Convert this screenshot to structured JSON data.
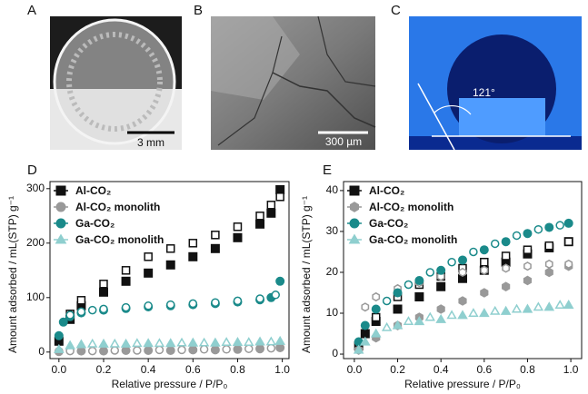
{
  "panels": {
    "a": {
      "label": "A",
      "scale_bar": "3 mm"
    },
    "b": {
      "label": "B",
      "scale_bar": "300 µm"
    },
    "c": {
      "label": "C",
      "angle": "121°"
    }
  },
  "chart_data": [
    {
      "type": "scatter",
      "panel_label": "D",
      "x_label": "Relative pressure / P/P₀",
      "y_label": "Amount adsorbed / mL(STP) g⁻¹",
      "xlim": [
        -0.04,
        1.03
      ],
      "ylim": [
        -12,
        313
      ],
      "xticks": [
        {
          "value": 0,
          "label": "0.0"
        },
        {
          "value": 0.2,
          "label": "0.2"
        },
        {
          "value": 0.4,
          "label": "0.4"
        },
        {
          "value": 0.6,
          "label": "0.6"
        },
        {
          "value": 0.8,
          "label": "0.8"
        },
        {
          "value": 1,
          "label": "1.0"
        }
      ],
      "yticks": [
        0,
        100,
        200,
        300
      ],
      "legend": "upper left",
      "series": [
        {
          "name": "Al-CO₂",
          "color": "#111111",
          "marker": "square",
          "x": [
            0.0,
            0.05,
            0.1,
            0.2,
            0.3,
            0.4,
            0.5,
            0.6,
            0.7,
            0.8,
            0.9,
            0.95,
            0.99
          ],
          "values": [
            20,
            60,
            85,
            110,
            130,
            145,
            160,
            175,
            190,
            210,
            235,
            255,
            298
          ],
          "desorption": {
            "x": [
              0.99,
              0.95,
              0.9,
              0.8,
              0.7,
              0.6,
              0.5,
              0.4,
              0.3,
              0.2,
              0.1,
              0.05
            ],
            "values": [
              285,
              270,
              250,
              230,
              215,
              200,
              190,
              175,
              150,
              125,
              95,
              70
            ]
          }
        },
        {
          "name": "Al-CO₂ monolith",
          "color": "#999999",
          "marker": "circle",
          "x": [
            0.0,
            0.1,
            0.2,
            0.3,
            0.4,
            0.5,
            0.6,
            0.7,
            0.8,
            0.9,
            0.99
          ],
          "values": [
            1,
            2,
            2,
            3,
            3,
            3,
            4,
            4,
            5,
            6,
            8
          ],
          "desorption": {
            "x": [
              0.95,
              0.85,
              0.75,
              0.65,
              0.55,
              0.45,
              0.35,
              0.25,
              0.15,
              0.05
            ],
            "values": [
              7,
              6,
              5,
              5,
              4,
              4,
              3,
              3,
              2,
              2
            ]
          }
        },
        {
          "name": "Ga-CO₂",
          "color": "#1a8a8a",
          "marker": "circle",
          "x": [
            0.0,
            0.02,
            0.05,
            0.1,
            0.2,
            0.3,
            0.4,
            0.5,
            0.6,
            0.7,
            0.8,
            0.9,
            0.95,
            0.99
          ],
          "values": [
            30,
            55,
            65,
            72,
            77,
            80,
            83,
            85,
            87,
            89,
            92,
            96,
            100,
            130
          ],
          "desorption": {
            "x": [
              0.97,
              0.9,
              0.8,
              0.7,
              0.6,
              0.5,
              0.4,
              0.3,
              0.2,
              0.15,
              0.1,
              0.05
            ],
            "values": [
              105,
              98,
              94,
              91,
              89,
              87,
              85,
              82,
              79,
              77,
              74,
              68
            ]
          }
        },
        {
          "name": "Ga-CO₂ monolith",
          "color": "#8fcfcf",
          "marker": "triangle",
          "x": [
            0.0,
            0.05,
            0.1,
            0.2,
            0.3,
            0.4,
            0.5,
            0.6,
            0.7,
            0.8,
            0.9,
            0.99
          ],
          "values": [
            5,
            12,
            14,
            15,
            15,
            16,
            16,
            17,
            17,
            18,
            19,
            20
          ],
          "desorption": {
            "x": [
              0.95,
              0.85,
              0.75,
              0.65,
              0.55,
              0.45,
              0.35,
              0.25,
              0.15
            ],
            "values": [
              19,
              18,
              18,
              17,
              17,
              16,
              16,
              15,
              15
            ]
          }
        }
      ]
    },
    {
      "type": "scatter",
      "panel_label": "E",
      "x_label": "Relative pressure / P/P₀",
      "y_label": "Amount adsorbed / mL(STP) g⁻¹",
      "xlim": [
        -0.05,
        1.05
      ],
      "ylim": [
        -1.1,
        42.2
      ],
      "xticks": [
        {
          "value": 0,
          "label": "0.0"
        },
        {
          "value": 0.2,
          "label": "0.2"
        },
        {
          "value": 0.4,
          "label": "0.4"
        },
        {
          "value": 0.6,
          "label": "0.6"
        },
        {
          "value": 0.8,
          "label": "0.8"
        },
        {
          "value": 1,
          "label": "1.0"
        }
      ],
      "yticks": [
        0,
        10,
        20,
        30,
        40
      ],
      "legend": "upper left",
      "series": [
        {
          "name": "Al-CO₂",
          "color": "#111111",
          "marker": "square",
          "x": [
            0.02,
            0.05,
            0.1,
            0.2,
            0.3,
            0.4,
            0.5,
            0.6,
            0.7,
            0.8,
            0.9,
            0.99
          ],
          "values": [
            2,
            5,
            8,
            11,
            14,
            16.5,
            18.5,
            20.5,
            22.5,
            24.5,
            26,
            27.5
          ],
          "desorption": {
            "x": [
              0.99,
              0.9,
              0.8,
              0.7,
              0.6,
              0.5,
              0.4,
              0.3,
              0.2,
              0.1
            ],
            "values": [
              27.5,
              26.5,
              25.5,
              24,
              22.5,
              21,
              19,
              17,
              14,
              9
            ]
          }
        },
        {
          "name": "Al-CO₂ monolith",
          "color": "#999999",
          "marker": "hexagon",
          "x": [
            0.02,
            0.1,
            0.2,
            0.3,
            0.4,
            0.5,
            0.6,
            0.7,
            0.8,
            0.9,
            0.99
          ],
          "values": [
            1,
            4,
            7,
            9,
            11,
            13,
            15,
            16.5,
            18,
            20,
            21.5
          ],
          "desorption": {
            "x": [
              0.99,
              0.9,
              0.8,
              0.7,
              0.6,
              0.5,
              0.4,
              0.3,
              0.2,
              0.1,
              0.05
            ],
            "values": [
              22,
              22,
              21.5,
              21,
              20.5,
              20,
              19,
              17.5,
              16,
              14,
              11.5
            ]
          }
        },
        {
          "name": "Ga-CO₂",
          "color": "#1a8a8a",
          "marker": "circle",
          "x": [
            0.02,
            0.05,
            0.1,
            0.2,
            0.3,
            0.4,
            0.5,
            0.6,
            0.7,
            0.8,
            0.9,
            0.99
          ],
          "values": [
            3,
            7,
            11,
            15,
            18,
            20.5,
            23,
            25.5,
            27.5,
            29.5,
            31,
            32
          ],
          "desorption": {
            "x": [
              0.95,
              0.85,
              0.75,
              0.65,
              0.55,
              0.45,
              0.35,
              0.25,
              0.15
            ],
            "values": [
              31.5,
              30.5,
              29,
              27,
              25,
              22.5,
              20,
              17,
              13
            ]
          }
        },
        {
          "name": "Ga-CO₂ monolith",
          "color": "#8fcfcf",
          "marker": "triangle",
          "x": [
            0.02,
            0.05,
            0.1,
            0.2,
            0.3,
            0.4,
            0.5,
            0.6,
            0.7,
            0.8,
            0.9,
            0.99
          ],
          "values": [
            1,
            3,
            5,
            7,
            8,
            8.5,
            9.5,
            10,
            10.5,
            11,
            11.5,
            12
          ],
          "desorption": {
            "x": [
              0.95,
              0.85,
              0.75,
              0.65,
              0.55,
              0.45,
              0.35,
              0.25,
              0.15
            ],
            "values": [
              12,
              11.5,
              11,
              10.5,
              10,
              9.5,
              9,
              8,
              6.5
            ]
          }
        }
      ]
    }
  ]
}
